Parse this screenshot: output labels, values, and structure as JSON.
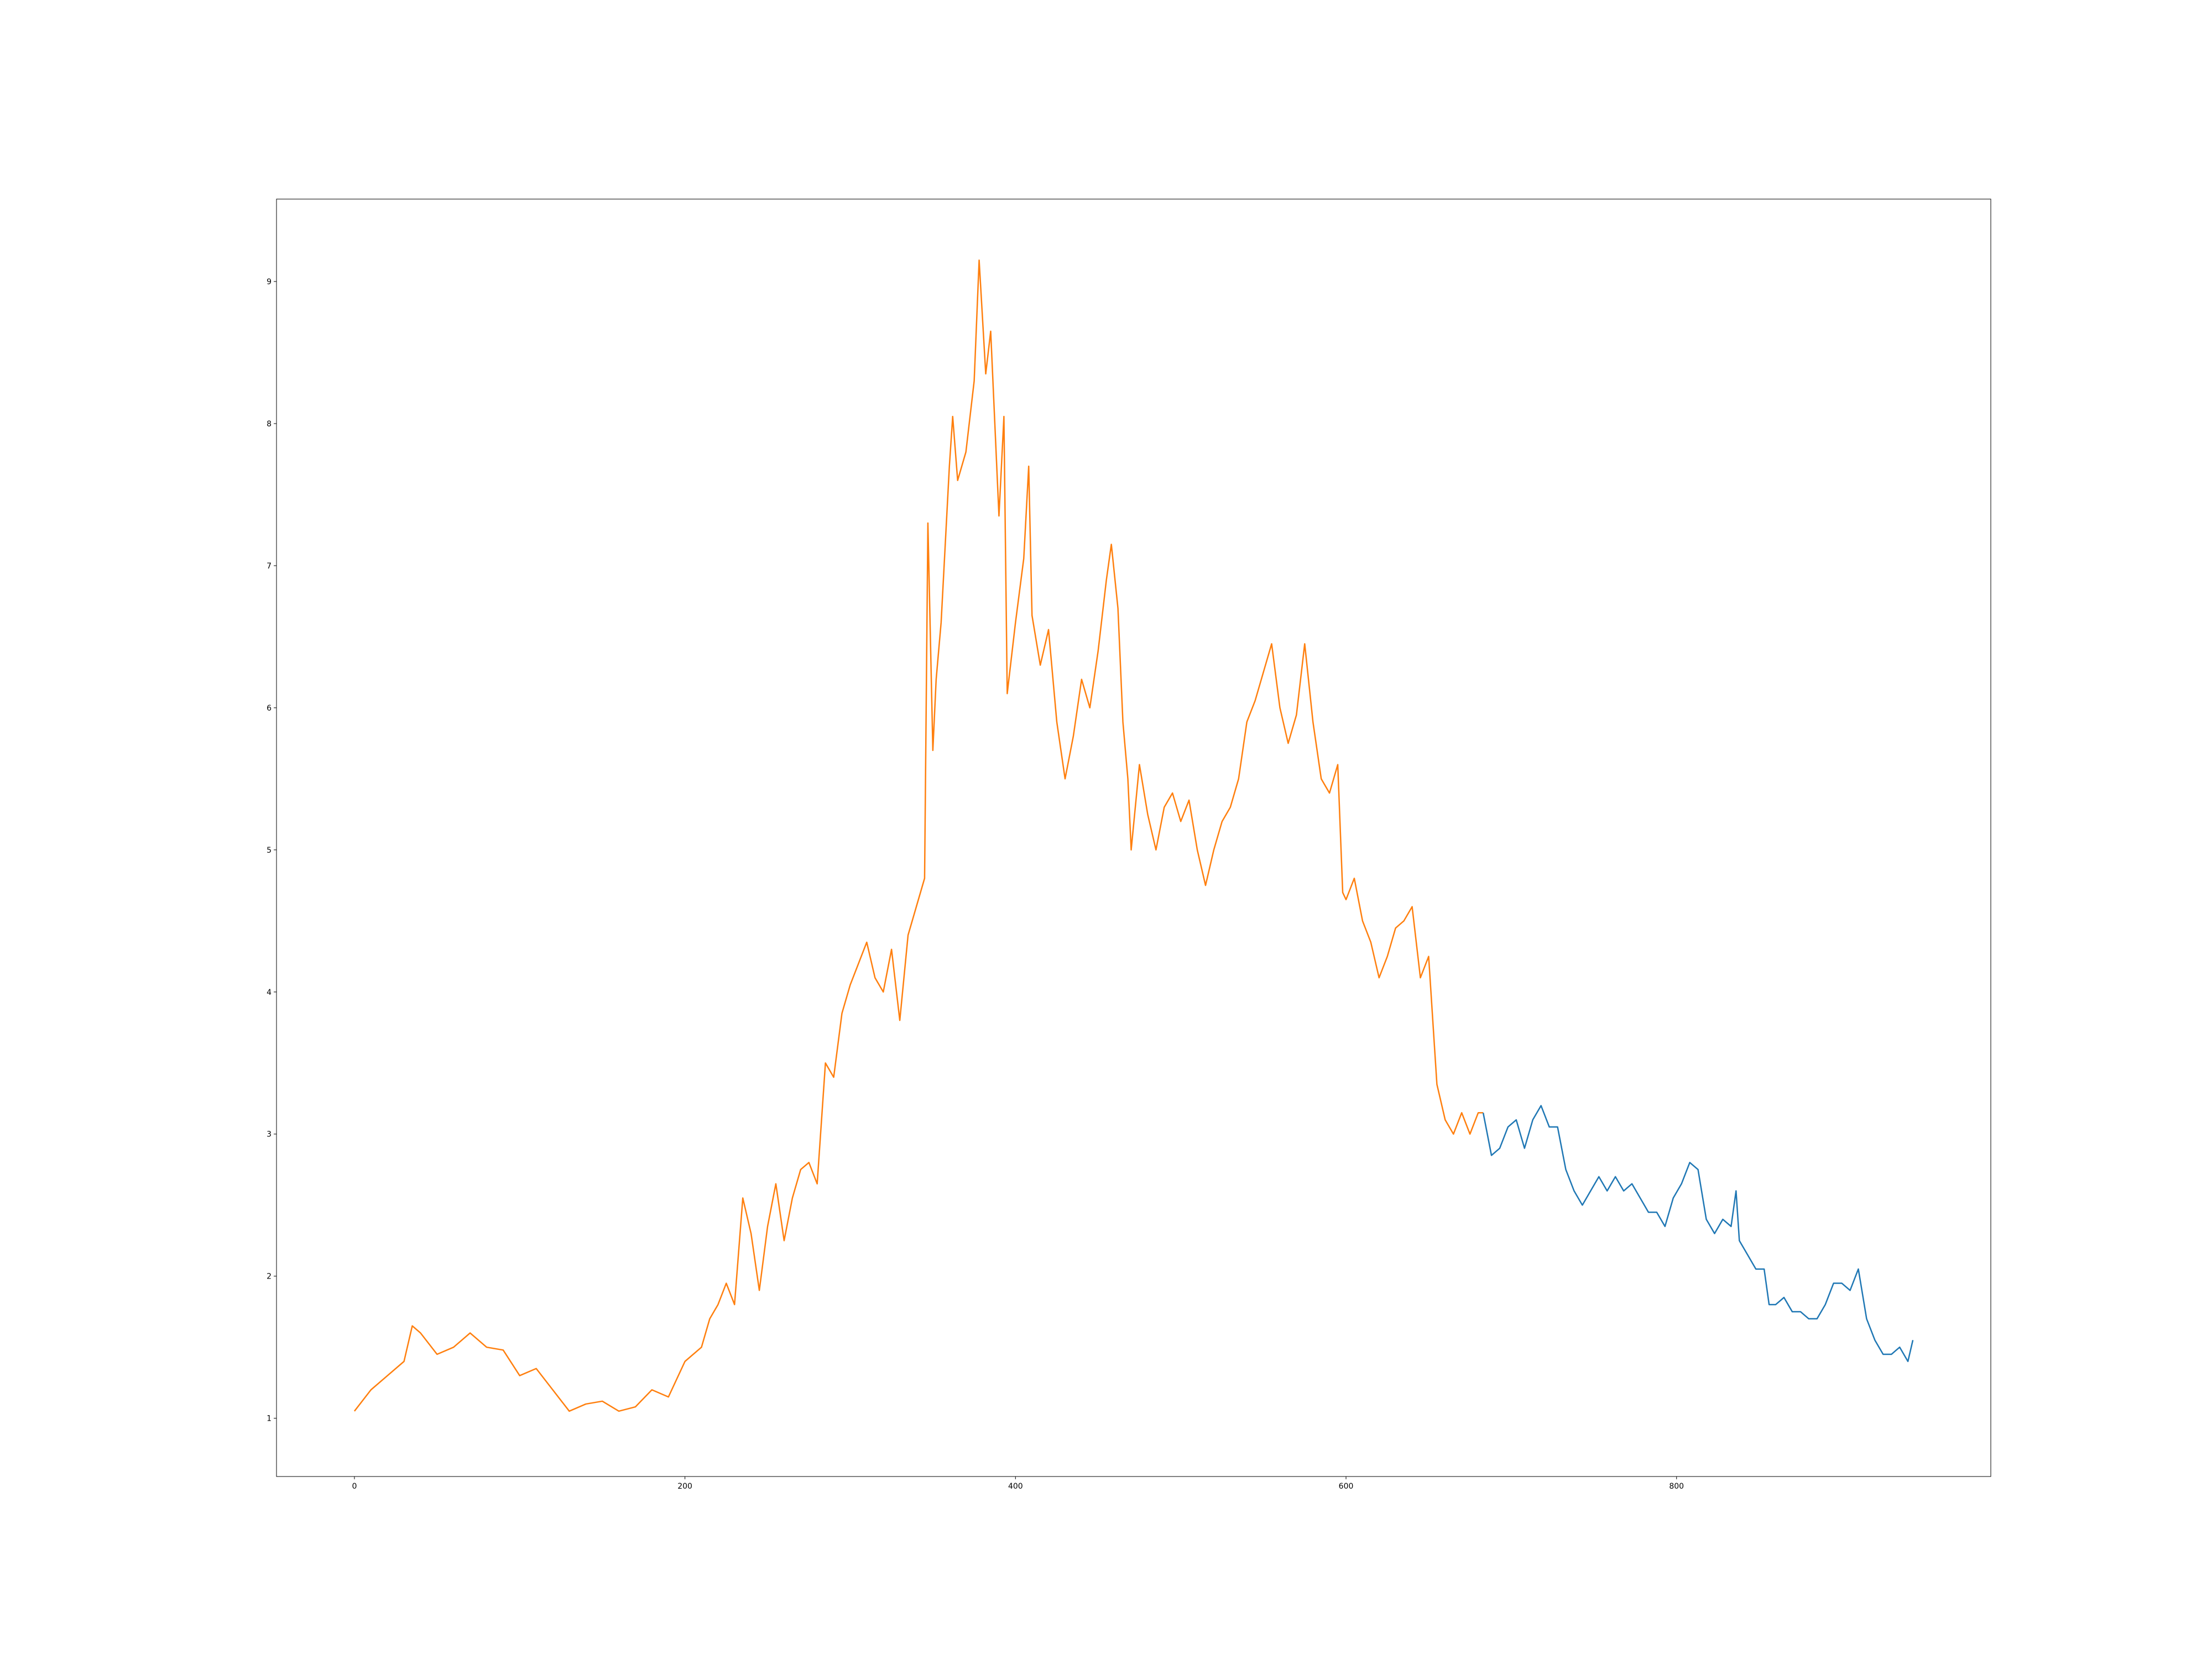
{
  "chart_data": {
    "type": "line",
    "xlim": [
      -47.15,
      990.15
    ],
    "ylim": [
      0.59,
      9.58
    ],
    "xticks": [
      0,
      200,
      400,
      600,
      800
    ],
    "yticks": [
      1,
      2,
      3,
      4,
      5,
      6,
      7,
      8,
      9
    ],
    "series": [
      {
        "color": "#ff7f0e",
        "x": [
          0,
          10,
          20,
          30,
          35,
          40,
          50,
          60,
          70,
          80,
          90,
          100,
          110,
          120,
          130,
          140,
          150,
          160,
          170,
          180,
          190,
          200,
          210,
          215,
          220,
          225,
          230,
          235,
          240,
          245,
          250,
          255,
          260,
          265,
          270,
          275,
          280,
          285,
          290,
          295,
          300,
          305,
          310,
          315,
          320,
          325,
          330,
          335,
          340,
          345,
          347,
          350,
          352,
          355,
          360,
          362,
          365,
          370,
          375,
          378,
          382,
          385,
          390,
          393,
          395,
          400,
          405,
          408,
          410,
          415,
          420,
          425,
          430,
          435,
          440,
          445,
          450,
          455,
          458,
          462,
          465,
          468,
          470,
          475,
          480,
          485,
          490,
          495,
          500,
          505,
          510,
          515,
          520,
          525,
          530,
          535,
          540,
          545,
          550,
          555,
          560,
          565,
          570,
          575,
          580,
          585,
          590,
          595,
          598,
          600,
          605,
          610,
          615,
          620,
          625,
          630,
          635,
          640,
          645,
          650,
          655,
          660,
          665,
          670,
          675,
          680,
          683
        ],
        "values": [
          1.05,
          1.2,
          1.3,
          1.4,
          1.65,
          1.6,
          1.45,
          1.5,
          1.6,
          1.5,
          1.48,
          1.3,
          1.35,
          1.2,
          1.05,
          1.1,
          1.12,
          1.05,
          1.08,
          1.2,
          1.15,
          1.4,
          1.5,
          1.7,
          1.8,
          1.95,
          1.8,
          2.55,
          2.3,
          1.9,
          2.35,
          2.65,
          2.25,
          2.55,
          2.75,
          2.8,
          2.65,
          3.5,
          3.4,
          3.85,
          4.05,
          4.2,
          4.35,
          4.1,
          4.0,
          4.3,
          3.8,
          4.4,
          4.6,
          4.8,
          7.3,
          5.7,
          6.2,
          6.6,
          7.7,
          8.05,
          7.6,
          7.8,
          8.3,
          9.15,
          8.35,
          8.65,
          7.35,
          8.05,
          6.1,
          6.6,
          7.05,
          7.7,
          6.65,
          6.3,
          6.55,
          5.9,
          5.5,
          5.8,
          6.2,
          6.0,
          6.4,
          6.9,
          7.15,
          6.7,
          5.9,
          5.5,
          5.0,
          5.6,
          5.25,
          5.0,
          5.3,
          5.4,
          5.2,
          5.35,
          5.0,
          4.75,
          5.0,
          5.2,
          5.3,
          5.5,
          5.9,
          6.05,
          6.25,
          6.45,
          6.0,
          5.75,
          5.95,
          6.45,
          5.9,
          5.5,
          5.4,
          5.6,
          4.7,
          4.65,
          4.8,
          4.5,
          4.35,
          4.1,
          4.25,
          4.45,
          4.5,
          4.6,
          4.1,
          4.25,
          3.35,
          3.1,
          3.0,
          3.15,
          3.0,
          3.15,
          3.15
        ]
      },
      {
        "color": "#1f77b4",
        "x": [
          683,
          688,
          693,
          698,
          703,
          708,
          713,
          718,
          723,
          728,
          733,
          738,
          743,
          748,
          753,
          758,
          763,
          768,
          773,
          778,
          783,
          788,
          793,
          798,
          803,
          808,
          813,
          818,
          823,
          828,
          833,
          836,
          838,
          843,
          848,
          853,
          856,
          860,
          865,
          870,
          875,
          880,
          885,
          890,
          895,
          900,
          905,
          910,
          915,
          920,
          925,
          930,
          935,
          940,
          943
        ],
        "values": [
          3.15,
          2.85,
          2.9,
          3.05,
          3.1,
          2.9,
          3.1,
          3.2,
          3.05,
          3.05,
          2.75,
          2.6,
          2.5,
          2.6,
          2.7,
          2.6,
          2.7,
          2.6,
          2.65,
          2.55,
          2.45,
          2.45,
          2.35,
          2.55,
          2.65,
          2.8,
          2.75,
          2.4,
          2.3,
          2.4,
          2.35,
          2.6,
          2.25,
          2.15,
          2.05,
          2.05,
          1.8,
          1.8,
          1.85,
          1.75,
          1.75,
          1.7,
          1.7,
          1.8,
          1.95,
          1.95,
          1.9,
          2.05,
          1.7,
          1.55,
          1.45,
          1.45,
          1.5,
          1.4,
          1.55
        ]
      }
    ]
  }
}
